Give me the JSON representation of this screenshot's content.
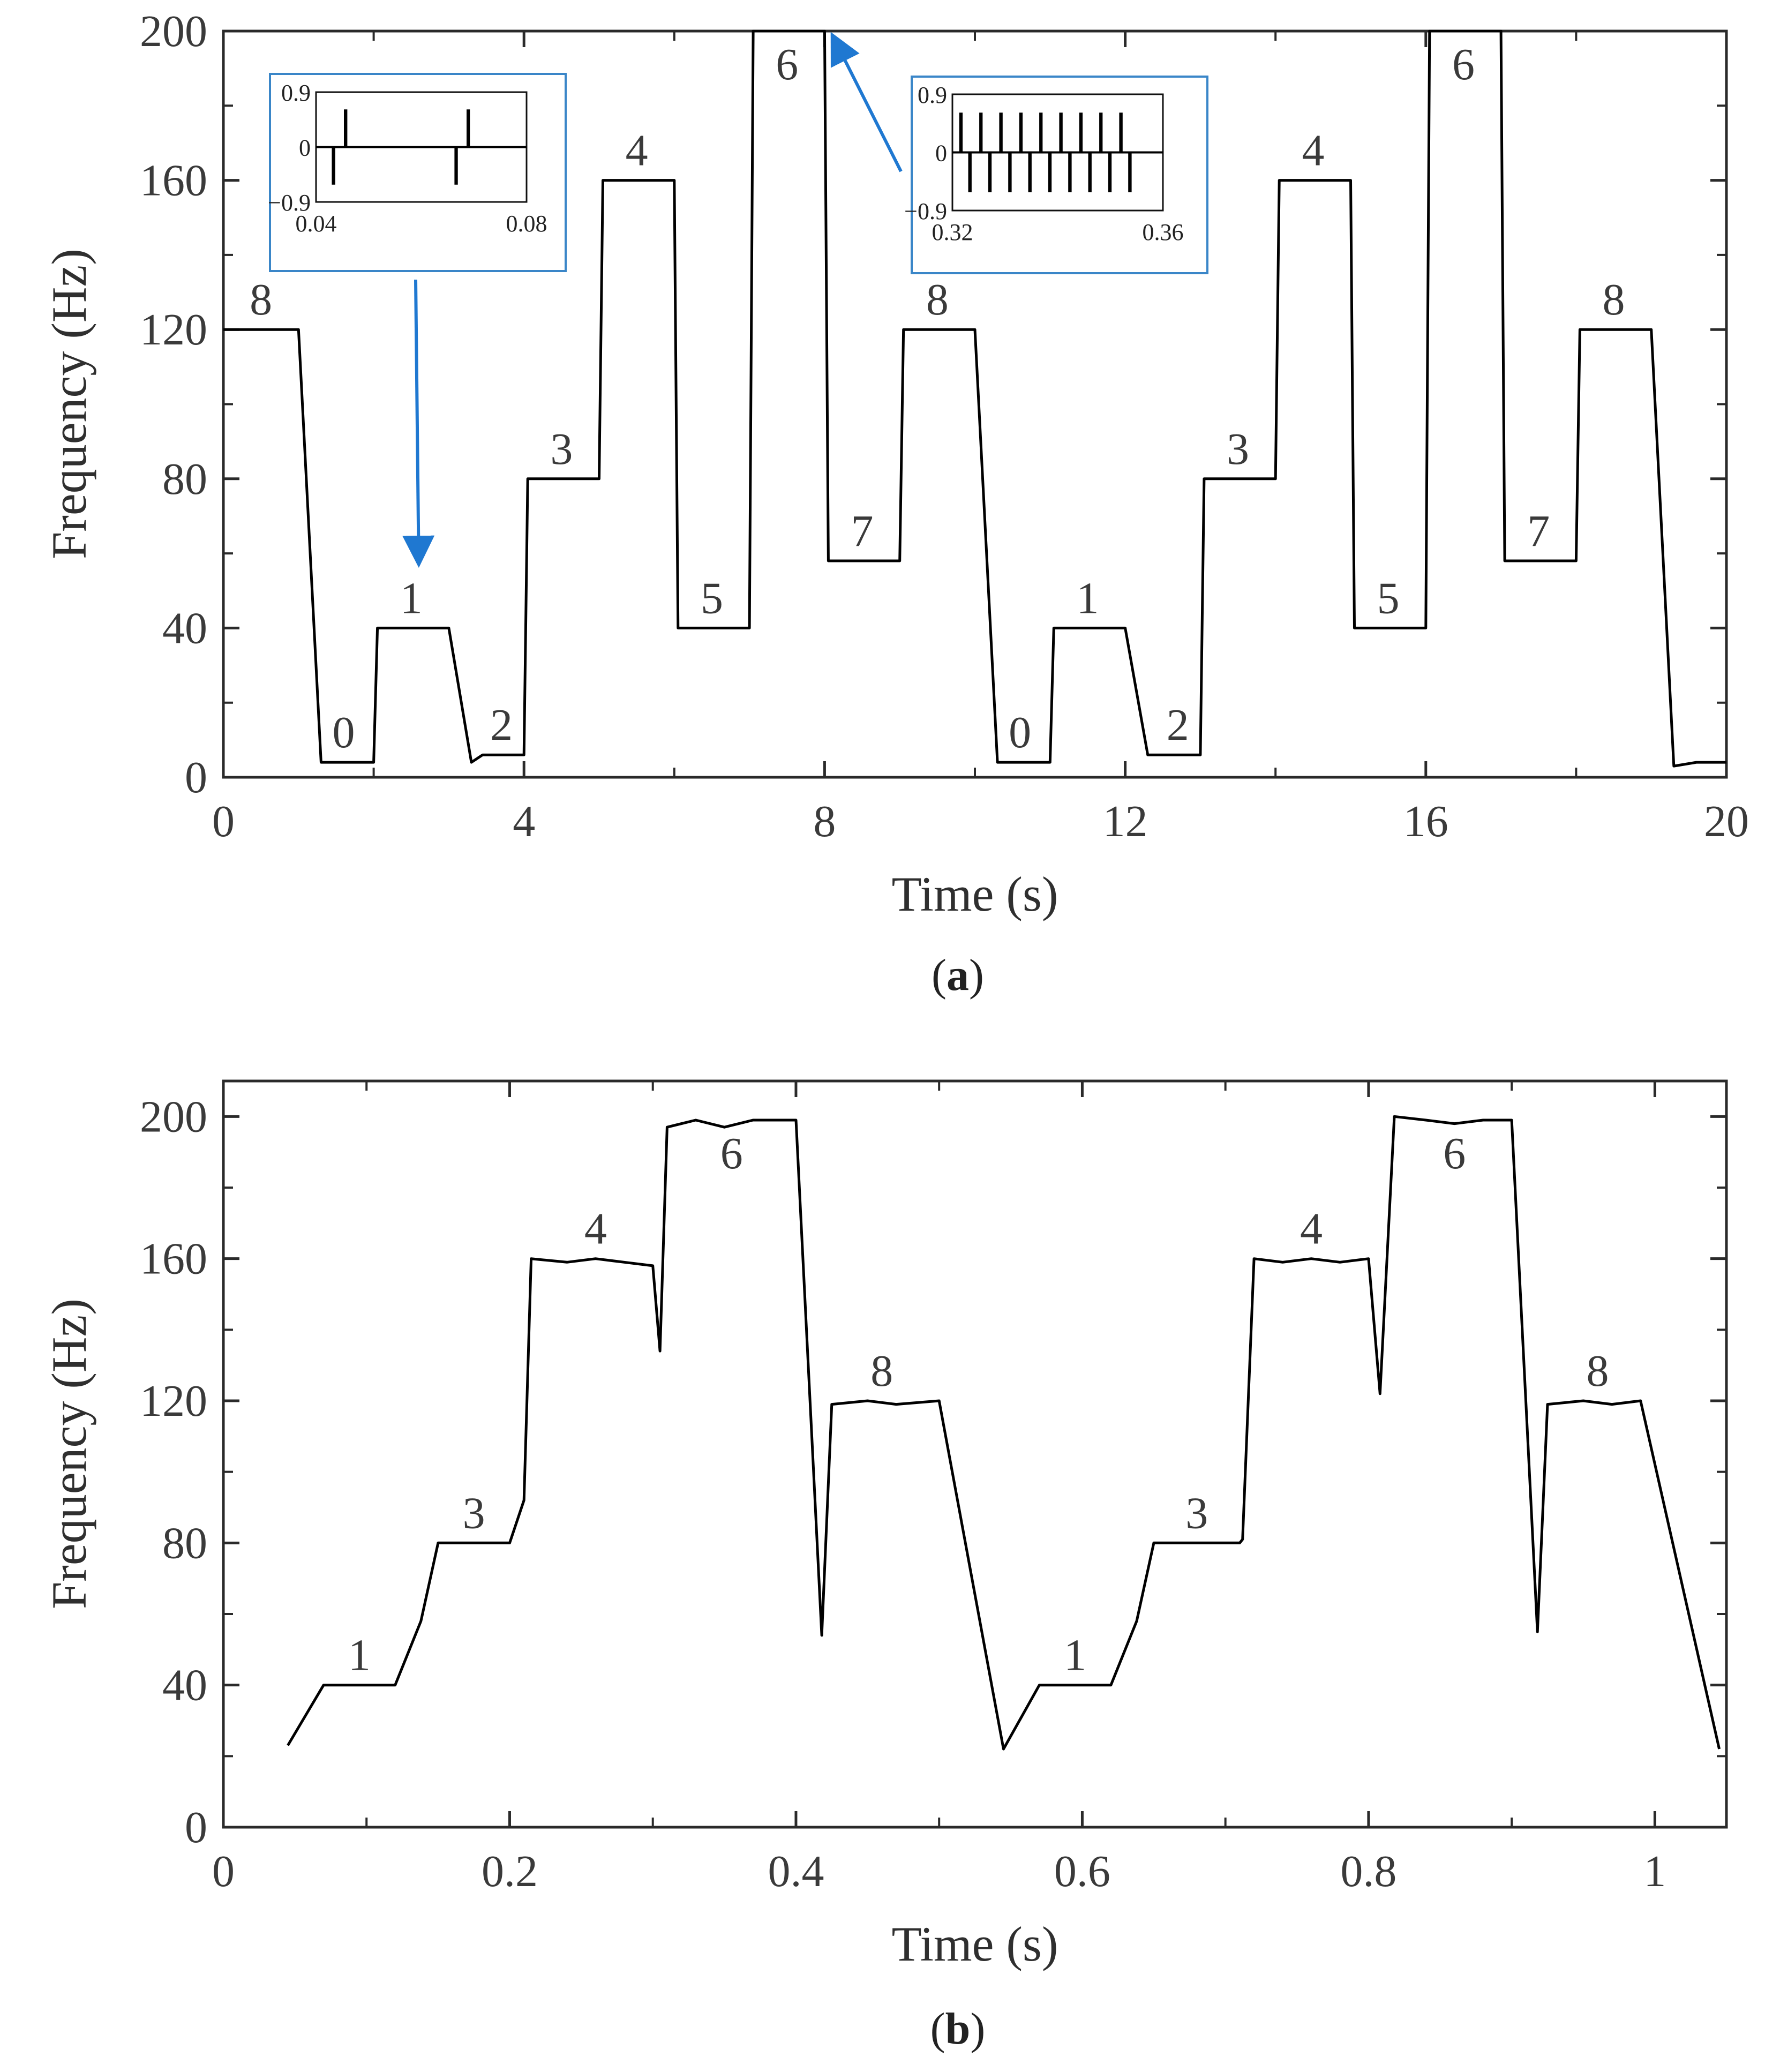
{
  "chart_data": [
    {
      "type": "line",
      "panel": "a",
      "caption_letter": "a",
      "xlabel": "Time (s)",
      "ylabel": "Frequency (Hz)",
      "xlim": [
        0,
        20
      ],
      "ylim": [
        0,
        200
      ],
      "xticks": [
        0,
        4,
        8,
        12,
        16,
        20
      ],
      "yticks": [
        0,
        40,
        80,
        120,
        160,
        200
      ],
      "series": [
        {
          "name": "frequency",
          "x": [
            0,
            1.0,
            1.3,
            2.0,
            2.05,
            3.0,
            3.3,
            3.45,
            4.0,
            4.05,
            5.0,
            5.05,
            6.0,
            6.05,
            7.0,
            7.05,
            8.0,
            8.05,
            9.0,
            9.05,
            10.0,
            10.3,
            11.0,
            11.05,
            12.0,
            12.3,
            12.45,
            13.0,
            13.05,
            14.0,
            14.05,
            15.0,
            15.05,
            16.0,
            16.05,
            17.0,
            17.05,
            18.0,
            18.05,
            19.0,
            19.3,
            19.6,
            20.0
          ],
          "y": [
            120,
            120,
            4,
            4,
            40,
            40,
            4,
            6,
            6,
            80,
            80,
            160,
            160,
            40,
            40,
            200,
            200,
            58,
            58,
            120,
            120,
            4,
            4,
            40,
            40,
            6,
            6,
            6,
            80,
            80,
            160,
            160,
            40,
            40,
            200,
            200,
            58,
            58,
            120,
            120,
            3,
            4,
            4
          ]
        }
      ],
      "annotations": [
        {
          "text": "8",
          "x": 0.5,
          "y": 120
        },
        {
          "text": "0",
          "x": 1.6,
          "y": 4
        },
        {
          "text": "1",
          "x": 2.5,
          "y": 40
        },
        {
          "text": "2",
          "x": 3.7,
          "y": 6
        },
        {
          "text": "3",
          "x": 4.5,
          "y": 80
        },
        {
          "text": "4",
          "x": 5.5,
          "y": 160
        },
        {
          "text": "5",
          "x": 6.5,
          "y": 40
        },
        {
          "text": "6",
          "x": 7.5,
          "y": 200
        },
        {
          "text": "7",
          "x": 8.5,
          "y": 58
        },
        {
          "text": "8",
          "x": 9.5,
          "y": 120
        },
        {
          "text": "0",
          "x": 10.6,
          "y": 4
        },
        {
          "text": "1",
          "x": 11.5,
          "y": 40
        },
        {
          "text": "2",
          "x": 12.7,
          "y": 6
        },
        {
          "text": "3",
          "x": 13.5,
          "y": 80
        },
        {
          "text": "4",
          "x": 14.5,
          "y": 160
        },
        {
          "text": "5",
          "x": 15.5,
          "y": 40
        },
        {
          "text": "6",
          "x": 16.5,
          "y": 200
        },
        {
          "text": "7",
          "x": 17.5,
          "y": 58
        },
        {
          "text": "8",
          "x": 18.5,
          "y": 120
        }
      ],
      "insets": [
        {
          "name": "inset-left",
          "xlim": [
            0.04,
            0.08
          ],
          "ylim": [
            -0.9,
            0.9
          ],
          "xticks": [
            0.04,
            0.08
          ],
          "yticks": [
            0.9,
            0,
            -0.9
          ],
          "ytick_labels": [
            "0.9",
            "0",
            "−0.9"
          ],
          "pulses": [
            {
              "x": 0.0432,
              "sign": -1
            },
            {
              "x": 0.0455,
              "sign": 1
            },
            {
              "x": 0.0665,
              "sign": -1
            },
            {
              "x": 0.0688,
              "sign": 1
            }
          ],
          "points_to": {
            "x": 2.6,
            "y": 57
          }
        },
        {
          "name": "inset-right",
          "xlim": [
            0.32,
            0.36
          ],
          "ylim": [
            -0.9,
            0.9
          ],
          "xticks": [
            0.32,
            0.36
          ],
          "yticks": [
            0.9,
            0,
            -0.9
          ],
          "ytick_labels": [
            "0.9",
            "0",
            "−0.9"
          ],
          "period": 0.0038,
          "first_pulse": 0.3215,
          "pulse_count": 9,
          "points_to": {
            "x": 8.1,
            "y": 199
          }
        }
      ]
    },
    {
      "type": "line",
      "panel": "b",
      "caption_letter": "b",
      "xlabel": "Time (s)",
      "ylabel": "Frequency (Hz)",
      "xlim": [
        0,
        1.05
      ],
      "ylim": [
        0,
        210
      ],
      "xticks": [
        0,
        0.2,
        0.4,
        0.6,
        0.8,
        1
      ],
      "xtick_labels": [
        "0",
        "0.2",
        "0.4",
        "0.6",
        "0.8",
        "1"
      ],
      "yticks": [
        0,
        40,
        80,
        120,
        160,
        200
      ],
      "series": [
        {
          "name": "frequency",
          "x": [
            0.045,
            0.07,
            0.12,
            0.138,
            0.15,
            0.2,
            0.21,
            0.215,
            0.24,
            0.26,
            0.28,
            0.3,
            0.305,
            0.31,
            0.33,
            0.35,
            0.37,
            0.4,
            0.418,
            0.425,
            0.45,
            0.47,
            0.5,
            0.545,
            0.57,
            0.62,
            0.638,
            0.65,
            0.71,
            0.712,
            0.72,
            0.74,
            0.76,
            0.78,
            0.8,
            0.808,
            0.818,
            0.84,
            0.86,
            0.88,
            0.9,
            0.918,
            0.925,
            0.95,
            0.97,
            0.99,
            1.045
          ],
          "y": [
            23,
            40,
            40,
            58,
            80,
            80,
            92,
            160,
            159,
            160,
            159,
            158,
            134,
            197,
            199,
            197,
            199,
            199,
            54,
            119,
            120,
            119,
            120,
            22,
            40,
            40,
            58,
            80,
            80,
            81,
            160,
            159,
            160,
            159,
            160,
            122,
            200,
            199,
            198,
            199,
            199,
            55,
            119,
            120,
            119,
            120,
            22
          ]
        }
      ],
      "annotations": [
        {
          "text": "1",
          "x": 0.095,
          "y": 40
        },
        {
          "text": "3",
          "x": 0.175,
          "y": 80
        },
        {
          "text": "4",
          "x": 0.26,
          "y": 160
        },
        {
          "text": "6",
          "x": 0.355,
          "y": 199
        },
        {
          "text": "8",
          "x": 0.46,
          "y": 120
        },
        {
          "text": "1",
          "x": 0.595,
          "y": 40
        },
        {
          "text": "3",
          "x": 0.68,
          "y": 80
        },
        {
          "text": "4",
          "x": 0.76,
          "y": 160
        },
        {
          "text": "6",
          "x": 0.86,
          "y": 199
        },
        {
          "text": "8",
          "x": 0.96,
          "y": 120
        }
      ]
    }
  ],
  "colors": {
    "line": "#000000",
    "text": "#3a3a3a",
    "inset_border": "#3a86c8",
    "arrow": "#1f78d1"
  }
}
